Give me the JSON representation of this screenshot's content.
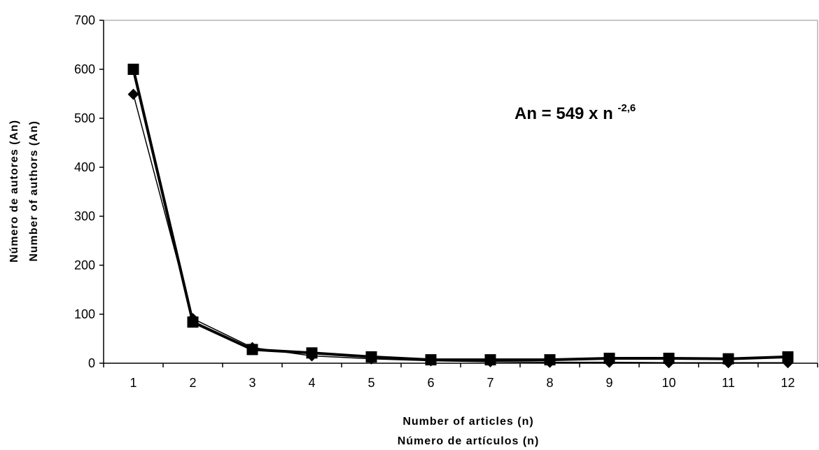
{
  "chart_data": {
    "type": "line",
    "x": [
      1,
      2,
      3,
      4,
      5,
      6,
      7,
      8,
      9,
      10,
      11,
      12
    ],
    "x_tick_labels": [
      "1",
      "2",
      "3",
      "4",
      "5",
      "6",
      "7",
      "8",
      "9",
      "10",
      "11",
      "12"
    ],
    "y_ticks": [
      0,
      100,
      200,
      300,
      400,
      500,
      600,
      700
    ],
    "y_tick_labels": [
      "0",
      "100",
      "200",
      "300",
      "400",
      "500",
      "600",
      "700"
    ],
    "ylim": [
      0,
      700
    ],
    "grid": false,
    "xlabel_lines": [
      "Number of articles (n)",
      "Número de artículos (n)"
    ],
    "ylabel_lines": [
      "Número de autores (An)",
      "Number of authors (An)"
    ],
    "annotation": {
      "base": "An = 549 x n",
      "exponent": "-2,6",
      "placement": "upper-right"
    },
    "series": [
      {
        "marker": "square",
        "values": [
          600,
          84,
          28,
          21,
          13,
          7,
          7,
          7,
          10,
          10,
          9,
          13
        ]
      },
      {
        "marker": "diamond",
        "values": [
          549,
          91,
          32,
          15,
          9,
          5,
          3,
          2,
          2,
          1,
          1,
          1
        ]
      }
    ]
  }
}
